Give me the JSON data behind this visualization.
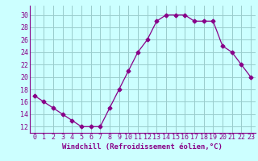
{
  "x": [
    0,
    1,
    2,
    3,
    4,
    5,
    6,
    7,
    8,
    9,
    10,
    11,
    12,
    13,
    14,
    15,
    16,
    17,
    18,
    19,
    20,
    21,
    22,
    23
  ],
  "y": [
    17,
    16,
    15,
    14,
    13,
    12,
    12,
    12,
    15,
    18,
    21,
    24,
    26,
    29,
    30,
    30,
    30,
    29,
    29,
    29,
    25,
    24,
    22,
    20
  ],
  "line_color": "#880088",
  "marker": "D",
  "marker_size": 2.5,
  "bg_color": "#ccffff",
  "grid_color": "#99cccc",
  "xlabel": "Windchill (Refroidissement éolien,°C)",
  "xlabel_color": "#880088",
  "xlabel_fontsize": 6.5,
  "tick_color": "#880088",
  "tick_fontsize": 6.0,
  "ylim": [
    11,
    31.5
  ],
  "xlim": [
    -0.5,
    23.5
  ],
  "yticks": [
    12,
    14,
    16,
    18,
    20,
    22,
    24,
    26,
    28,
    30
  ],
  "xticks": [
    0,
    1,
    2,
    3,
    4,
    5,
    6,
    7,
    8,
    9,
    10,
    11,
    12,
    13,
    14,
    15,
    16,
    17,
    18,
    19,
    20,
    21,
    22,
    23
  ]
}
